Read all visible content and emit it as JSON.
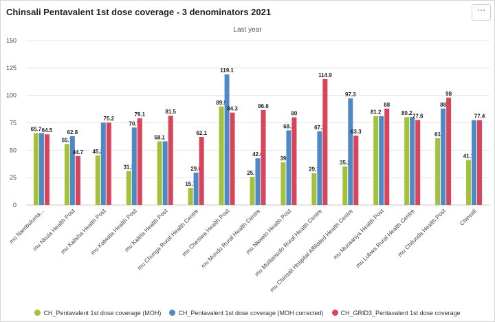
{
  "chart_data": {
    "type": "bar",
    "title": "Chinsali Pentavalent 1st dose coverage - 3 denominators 2021",
    "subtitle": "Last year",
    "ylim": [
      0,
      150
    ],
    "yticks": [
      0,
      25,
      50,
      75,
      100,
      125,
      150
    ],
    "grid": true,
    "legend_position": "bottom",
    "categories": [
      "mu Nambuluma...",
      "mu Nkula Health Post",
      "mu Kalisha Health Post",
      "mu Kalwala Health Post",
      "mu Kalela Health Post",
      "mu Chunga Rural Health Centre",
      "mu Chesiwa Health Post",
      "mu Mundu Rural Health Centre",
      "mu Nkweto Health Post",
      "mu Mulilansolo Rural Health Centre",
      "mu Chinsali Hospital Affiliated Health Centre",
      "mu Munsanya Health Post",
      "mu Lubwa Rural Health Centre",
      "mu Chilunda Health Post",
      "Chinsali"
    ],
    "series": [
      {
        "name": "CH_Pentavalent 1st dose coverage (MOH)",
        "color": "#a3c13b",
        "values": [
          65.7,
          55.7,
          45.2,
          31.1,
          58.1,
          15.7,
          89.9,
          25.7,
          39,
          29.1,
          35.2,
          81.2,
          80.2,
          61,
          41.1
        ]
      },
      {
        "name": "CH_Pentavalent 1st dose coverage (MOH corrected)",
        "color": "#4f88c7",
        "values": [
          65.7,
          62.8,
          75.2,
          70.7,
          58.1,
          29.6,
          119.1,
          42.6,
          68.1,
          67.3,
          97.3,
          81.2,
          80.2,
          88,
          77.4
        ]
      },
      {
        "name": "CH_GRID3_Pentavalent 1st dose coverage",
        "color": "#d8455a",
        "values": [
          64.5,
          44.7,
          75.2,
          79.1,
          81.5,
          62.1,
          84.3,
          86.6,
          80,
          114.9,
          63.3,
          88,
          77.6,
          98,
          77.4
        ]
      }
    ],
    "data_labels": [
      [
        "65.7",
        "55.7",
        "45.2",
        "31.1",
        "58.1",
        "15.7",
        "89.9",
        "25.7",
        "39",
        "29.1",
        "35.2",
        "81.2",
        "80.2",
        "61",
        "41.1"
      ],
      [
        "",
        "62.8",
        "",
        "70.7",
        "",
        "29.6",
        "119.1",
        "42.6",
        "68.1",
        "67.3",
        "97.3",
        "",
        "",
        "88",
        ""
      ],
      [
        "64.5",
        "44.7",
        "75.2",
        "79.1",
        "81.5",
        "62.1",
        "84.3",
        "86.6",
        "80",
        "114.9",
        "63.3",
        "88",
        "77.6",
        "98",
        "77.4"
      ]
    ]
  },
  "ui": {
    "menu_icon": "more-horizontal-icon",
    "menu_glyph": "⋯"
  }
}
